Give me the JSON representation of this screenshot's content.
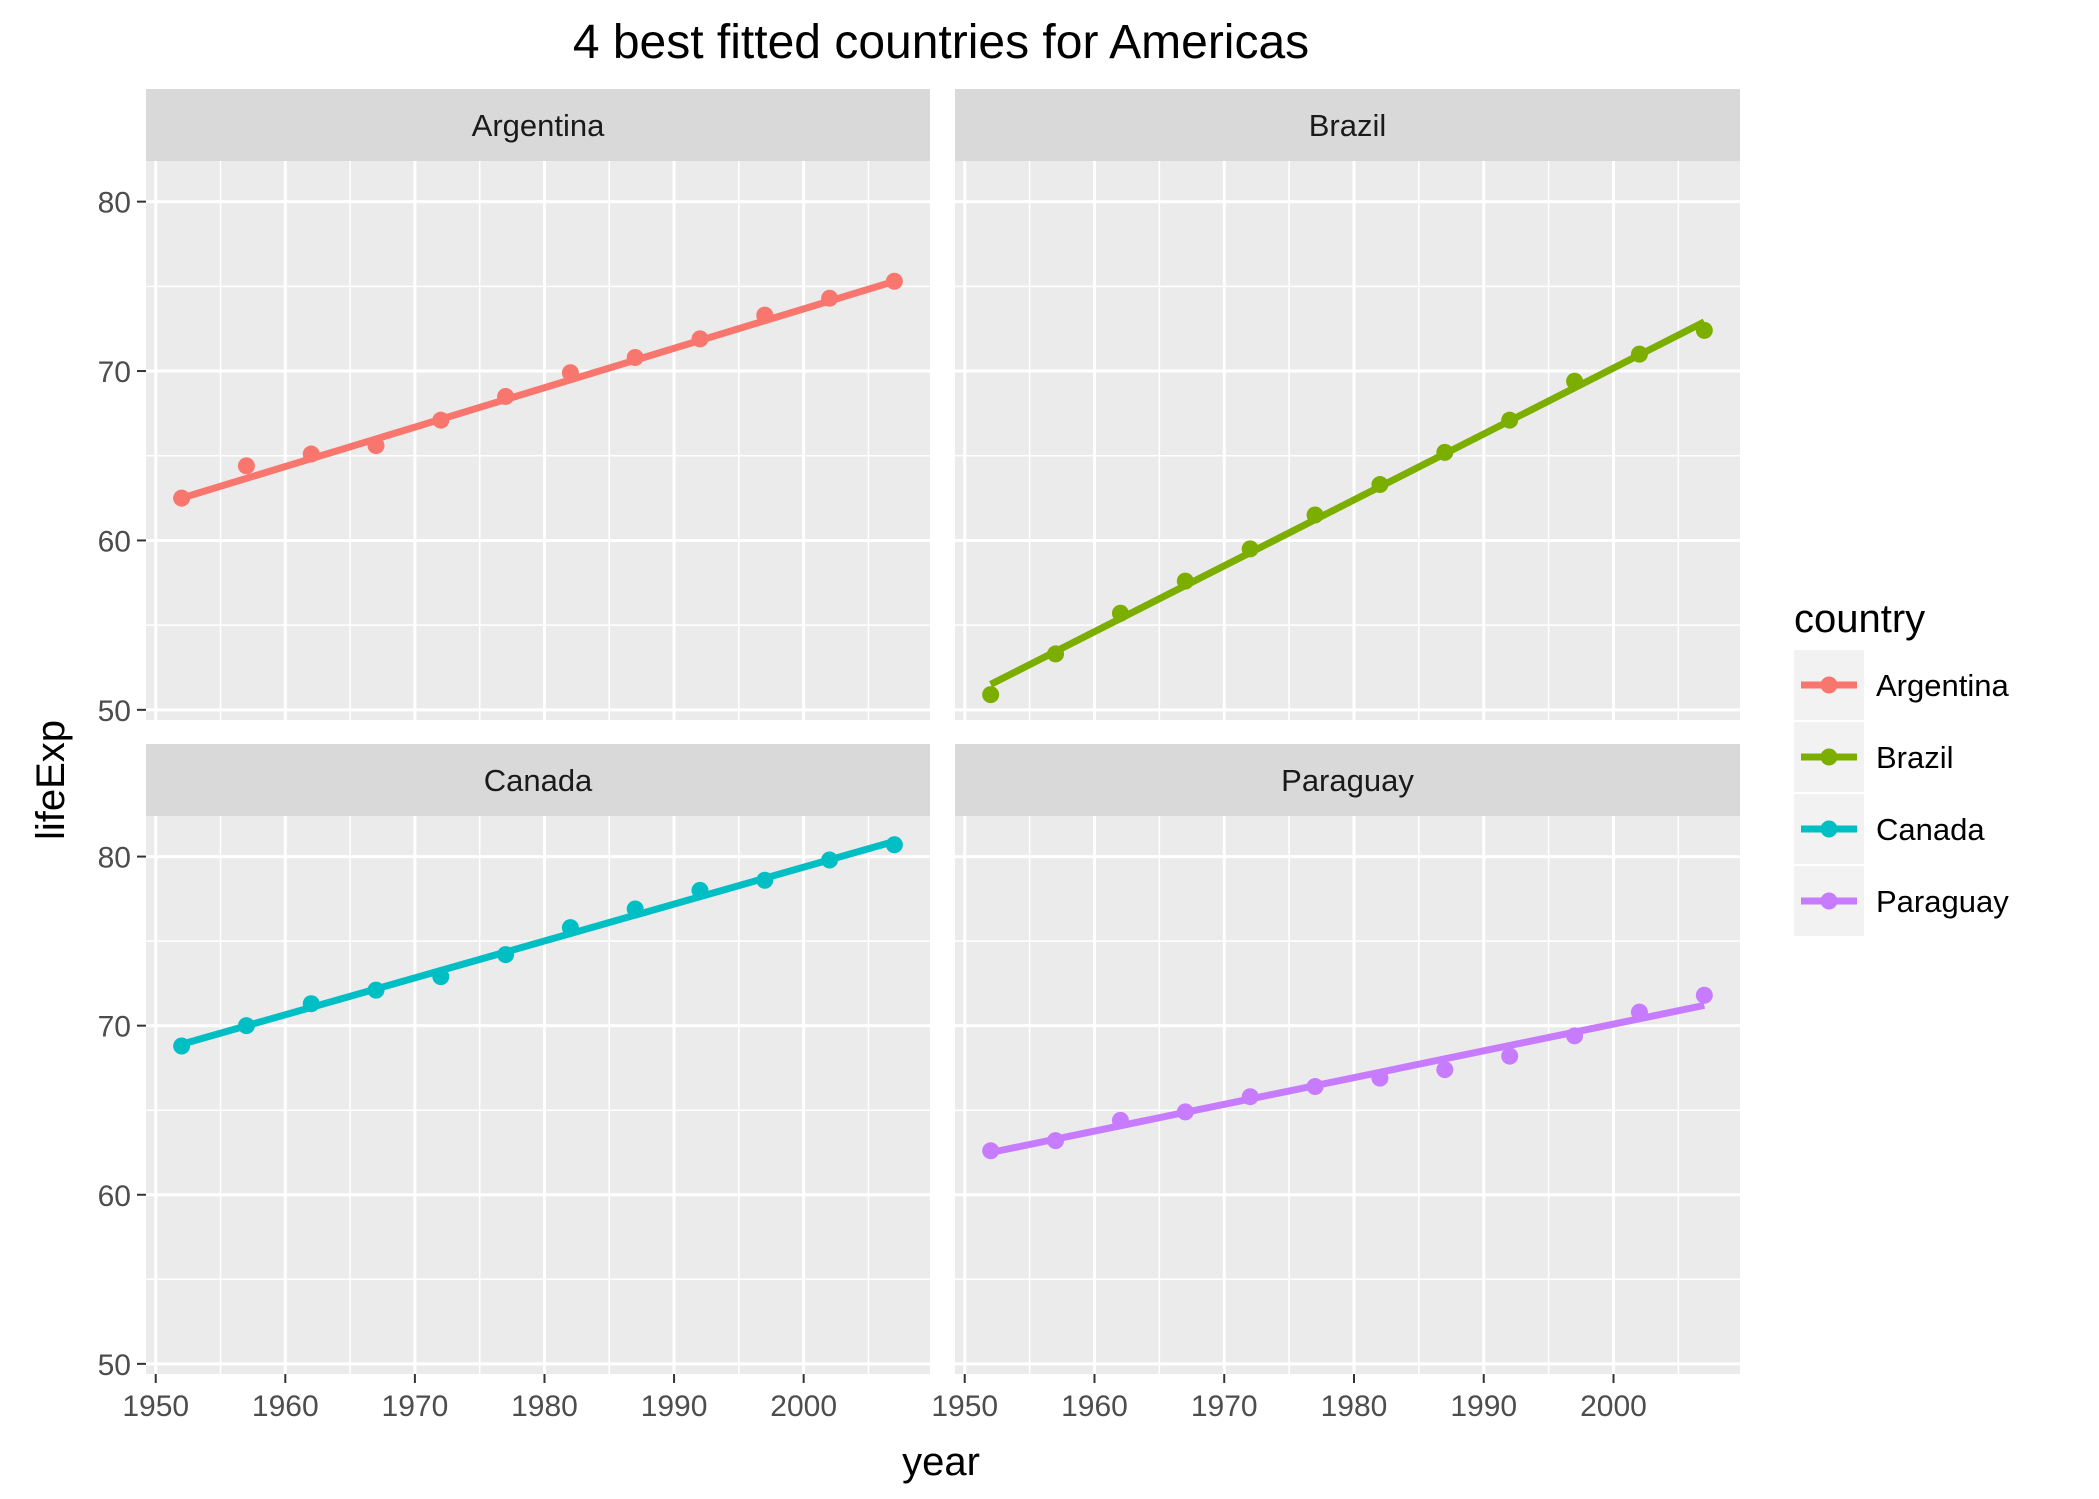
{
  "chart_data": {
    "type": "line",
    "title": "4 best fitted countries for Americas",
    "xlabel": "year",
    "ylabel": "lifeExp",
    "xlim": [
      1949.25,
      2009.75
    ],
    "ylim": [
      49.4,
      82.4
    ],
    "x_ticks": [
      1950,
      1960,
      1970,
      1980,
      1990,
      2000
    ],
    "y_ticks": [
      50,
      60,
      70,
      80
    ],
    "grid": true,
    "legend": {
      "title": "country",
      "position": "right"
    },
    "x": [
      1952,
      1957,
      1962,
      1967,
      1972,
      1977,
      1982,
      1987,
      1992,
      1997,
      2002,
      2007
    ],
    "series": [
      {
        "name": "Argentina",
        "color": "#F8766D",
        "values": [
          62.5,
          64.4,
          65.1,
          65.6,
          67.1,
          68.5,
          69.9,
          70.8,
          71.9,
          73.3,
          74.3,
          75.3
        ],
        "fit": [
          62.5,
          75.3
        ]
      },
      {
        "name": "Brazil",
        "color": "#7CAE00",
        "values": [
          50.9,
          53.3,
          55.7,
          57.6,
          59.5,
          61.5,
          63.3,
          65.2,
          67.1,
          69.4,
          71.0,
          72.4
        ],
        "fit": [
          51.5,
          72.9
        ]
      },
      {
        "name": "Canada",
        "color": "#00BFC4",
        "values": [
          68.8,
          70.0,
          71.3,
          72.1,
          72.9,
          74.2,
          75.8,
          76.9,
          78.0,
          78.6,
          79.8,
          80.7
        ],
        "fit": [
          68.9,
          80.9
        ]
      },
      {
        "name": "Paraguay",
        "color": "#C77CFF",
        "values": [
          62.6,
          63.2,
          64.4,
          64.9,
          65.8,
          66.4,
          66.9,
          67.4,
          68.2,
          69.4,
          70.8,
          71.8
        ],
        "fit": [
          62.5,
          71.2
        ]
      }
    ]
  }
}
